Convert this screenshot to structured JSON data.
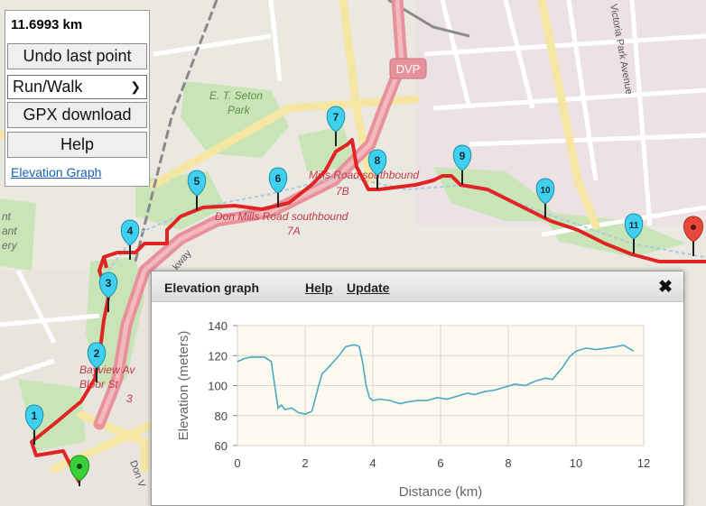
{
  "panel": {
    "distance": "11.6993 km",
    "undo_label": "Undo last point",
    "mode_value": "Run/Walk",
    "gpx_label": "GPX download",
    "help_label": "Help",
    "elevation_link": "Elevation Graph"
  },
  "map": {
    "labels": {
      "dvp": "DVP",
      "park1": "E. T. Seton",
      "park2": "Park",
      "mills_7b_a": "Mills Road southbound",
      "mills_7b_b": "7B",
      "mills_7a_a": "Don Mills Road southbound",
      "mills_7a_b": "7A",
      "victoria_park": "Victoria Park Avenue",
      "bayview_a": "Bayview Av",
      "bayview_b": "Bloor St",
      "bayview_c": "3",
      "left_a": "nt",
      "left_b": "ant",
      "left_c": "ery",
      "don_v": "Don V",
      "parkway": "kway"
    },
    "markers": [
      "1",
      "2",
      "3",
      "4",
      "5",
      "6",
      "7",
      "8",
      "9",
      "10",
      "11"
    ],
    "colors": {
      "route": "#e02424",
      "marker": "#3ed0ee",
      "start_marker": "#3ccf3c",
      "end_marker": "#e8483a",
      "highway": "#e7929a"
    }
  },
  "elevation": {
    "title": "Elevation graph",
    "help_label": "Help",
    "update_label": "Update",
    "close_label": "✖"
  },
  "chart_data": {
    "type": "line",
    "title": "",
    "xlabel": "Distance (km)",
    "ylabel": "Elevation (meters)",
    "xlim": [
      0,
      12
    ],
    "ylim": [
      60,
      140
    ],
    "xticks": [
      0,
      2,
      4,
      6,
      8,
      10,
      12
    ],
    "yticks": [
      60,
      80,
      100,
      120,
      140
    ],
    "grid": true,
    "line_color": "#4aa9c4",
    "plot_bg": "#fcf9ee",
    "x": [
      0,
      0.2,
      0.4,
      0.6,
      0.8,
      1.0,
      1.1,
      1.2,
      1.3,
      1.4,
      1.6,
      1.8,
      2.0,
      2.2,
      2.4,
      2.5,
      2.6,
      2.8,
      3.0,
      3.2,
      3.4,
      3.5,
      3.6,
      3.7,
      3.8,
      3.9,
      4.0,
      4.2,
      4.5,
      4.8,
      5.0,
      5.3,
      5.6,
      5.9,
      6.2,
      6.5,
      6.8,
      7.0,
      7.3,
      7.6,
      7.9,
      8.2,
      8.5,
      8.8,
      9.1,
      9.3,
      9.6,
      9.8,
      10.0,
      10.3,
      10.6,
      10.9,
      11.2,
      11.4,
      11.7
    ],
    "y": [
      116,
      118,
      119,
      119,
      119,
      116,
      100,
      85,
      87,
      84,
      85,
      82,
      81,
      83,
      100,
      108,
      110,
      115,
      120,
      126,
      127,
      127,
      126,
      115,
      100,
      92,
      90,
      91,
      90,
      88,
      89,
      90,
      90,
      92,
      91,
      93,
      95,
      94,
      96,
      97,
      99,
      101,
      100,
      103,
      105,
      104,
      112,
      119,
      123,
      125,
      124,
      125,
      126,
      127,
      123
    ]
  }
}
